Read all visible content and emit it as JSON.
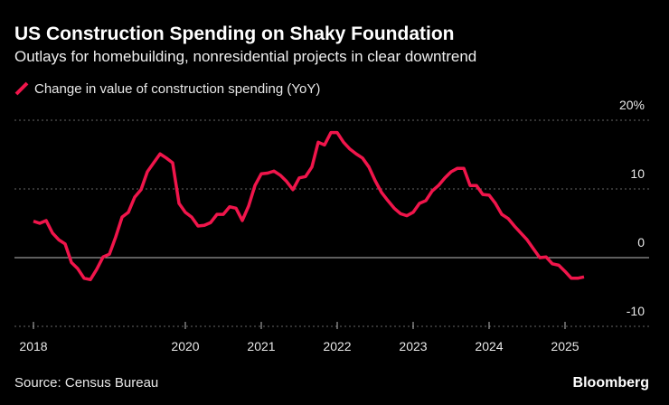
{
  "chart_data": {
    "type": "line",
    "title": "US Construction Spending on Shaky Foundation",
    "subtitle": "Outlays for homebuilding, nonresidential projects in clear downtrend",
    "source": "Source: Census Bureau",
    "brand": "Bloomberg",
    "x": [
      2018,
      2018.083,
      2018.167,
      2018.25,
      2018.333,
      2018.417,
      2018.5,
      2018.583,
      2018.667,
      2018.75,
      2018.833,
      2018.917,
      2019,
      2019.083,
      2019.167,
      2019.25,
      2019.333,
      2019.417,
      2019.5,
      2019.583,
      2019.667,
      2019.75,
      2019.833,
      2019.917,
      2020,
      2020.083,
      2020.167,
      2020.25,
      2020.333,
      2020.417,
      2020.5,
      2020.583,
      2020.667,
      2020.75,
      2020.833,
      2020.917,
      2021,
      2021.083,
      2021.167,
      2021.25,
      2021.333,
      2021.417,
      2021.5,
      2021.583,
      2021.667,
      2021.75,
      2021.833,
      2021.917,
      2022,
      2022.083,
      2022.167,
      2022.25,
      2022.333,
      2022.417,
      2022.5,
      2022.583,
      2022.667,
      2022.75,
      2022.833,
      2022.917,
      2023,
      2023.083,
      2023.167,
      2023.25,
      2023.333,
      2023.417,
      2023.5,
      2023.583,
      2023.667,
      2023.75,
      2023.833,
      2023.917,
      2024,
      2024.083,
      2024.167,
      2024.25,
      2024.333,
      2024.417,
      2024.5,
      2024.583,
      2024.667,
      2024.75,
      2024.833,
      2024.917,
      2025,
      2025.083,
      2025.167,
      2025.25
    ],
    "series": [
      {
        "name": "Change in value of construction spending (YoY)",
        "color": "#f0154b",
        "values": [
          5.3,
          5.0,
          5.4,
          3.6,
          2.6,
          2.0,
          -0.7,
          -1.6,
          -3.0,
          -3.2,
          -1.7,
          0.1,
          0.5,
          3.0,
          5.9,
          6.6,
          8.8,
          9.9,
          12.5,
          13.8,
          15.1,
          14.5,
          13.8,
          7.9,
          6.6,
          5.9,
          4.6,
          4.7,
          5.1,
          6.3,
          6.3,
          7.4,
          7.2,
          5.4,
          7.5,
          10.5,
          12.2,
          12.3,
          12.6,
          12.0,
          11.1,
          9.9,
          11.6,
          11.8,
          13.2,
          16.8,
          16.4,
          18.2,
          18.2,
          16.8,
          15.8,
          15.1,
          14.5,
          13.2,
          11.2,
          9.5,
          8.3,
          7.2,
          6.4,
          6.1,
          6.6,
          7.9,
          8.3,
          9.7,
          10.5,
          11.6,
          12.5,
          13.0,
          13.0,
          10.5,
          10.5,
          9.2,
          9.1,
          7.9,
          6.3,
          5.7,
          4.6,
          3.6,
          2.6,
          1.3,
          0,
          0.1,
          -0.9,
          -1.1,
          -2.0,
          -3.0,
          -3.0,
          -2.8
        ]
      }
    ],
    "xlim": [
      2018,
      2025.25
    ],
    "xticks": [
      2018,
      2020,
      2021,
      2022,
      2023,
      2024,
      2025
    ],
    "ylim": [
      -13,
      22
    ],
    "yticks": [
      {
        "value": 20,
        "label": "20%"
      },
      10,
      0,
      -10
    ],
    "grid": true
  }
}
